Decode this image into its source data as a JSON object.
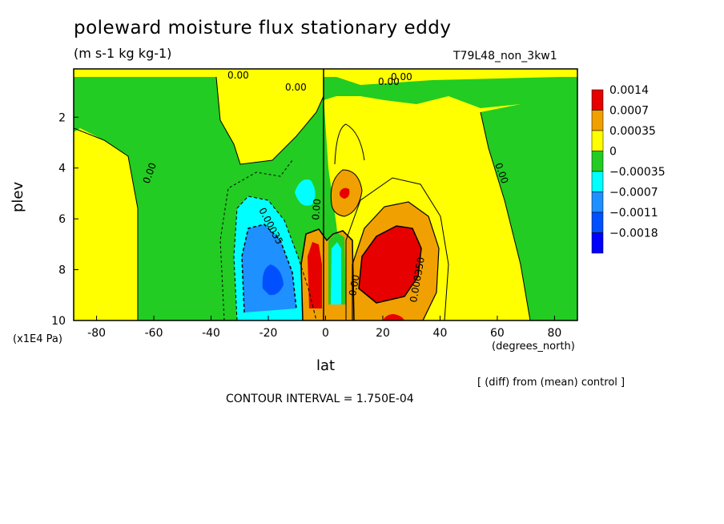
{
  "chart_data": {
    "type": "heatmap",
    "title": "poleward moisture flux stationary eddy",
    "subtitle": "(m s-1 kg kg-1)",
    "run_label": "T79L48_non_3kw1",
    "xlabel": "lat",
    "x_units": "(degrees_north)",
    "ylabel": "plev",
    "y_units": "(x1E4 Pa)",
    "xlim": [
      -88,
      88
    ],
    "ylim": [
      0.1,
      10
    ],
    "x_ticks": [
      "-80",
      "-60",
      "-40",
      "-20",
      "0",
      "20",
      "40",
      "60",
      "80"
    ],
    "x_tick_values": [
      -80,
      -60,
      -40,
      -20,
      0,
      20,
      40,
      60,
      80
    ],
    "y_ticks": [
      "2",
      "4",
      "6",
      "8",
      "10"
    ],
    "y_tick_values": [
      2,
      4,
      6,
      8,
      10
    ],
    "legend": {
      "placement": "right",
      "labels": [
        "0.0014",
        "0.0007",
        "0.00035",
        "0",
        "−0.00035",
        "−0.0007",
        "−0.0011",
        "−0.0018"
      ],
      "colors": [
        "#e60000",
        "#f0a000",
        "#ffff00",
        "#22cc22",
        "#00ffff",
        "#1e90ff",
        "#0050ff",
        "#0000ff"
      ]
    },
    "contour_labels": [
      "0.00",
      "0.00",
      "0.00",
      "0.00",
      "0.00",
      "0.00",
      "0.00035",
      "0.00",
      "0.00",
      "0.000350"
    ],
    "diff_note": "[ (diff) from (mean) control ]",
    "contour_interval": "CONTOUR INTERVAL = 1.750E-04"
  },
  "colors": {
    "red": "#e60000",
    "orange": "#f0a000",
    "yellow": "#ffff00",
    "green": "#22cc22",
    "cyan": "#00ffff",
    "lightblue": "#1e90ff",
    "blue": "#0050ff"
  }
}
